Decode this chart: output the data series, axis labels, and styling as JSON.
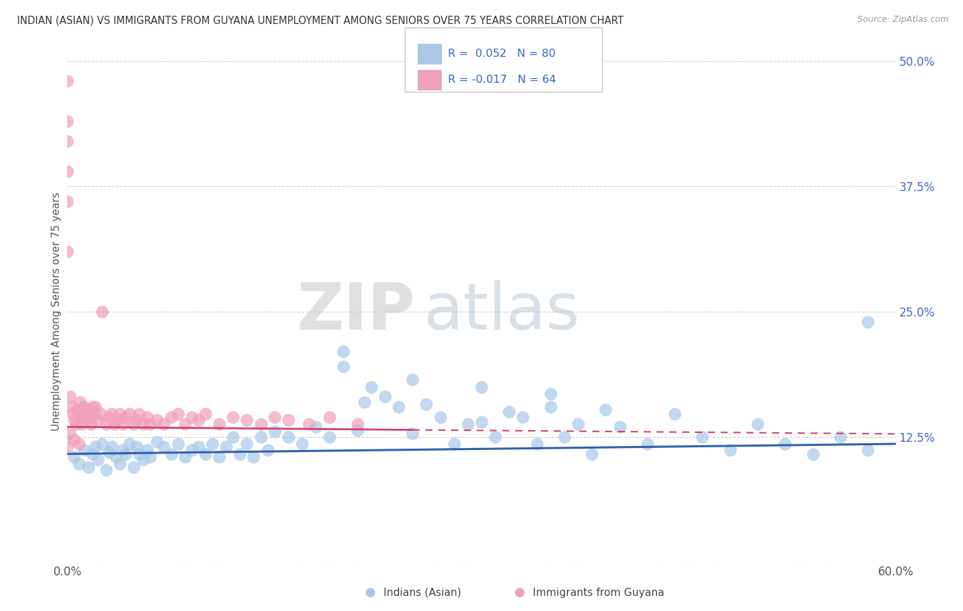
{
  "title": "INDIAN (ASIAN) VS IMMIGRANTS FROM GUYANA UNEMPLOYMENT AMONG SENIORS OVER 75 YEARS CORRELATION CHART",
  "source": "Source: ZipAtlas.com",
  "ylabel": "Unemployment Among Seniors over 75 years",
  "xlim": [
    0.0,
    0.6
  ],
  "ylim": [
    0.0,
    0.5
  ],
  "xticks": [
    0.0,
    0.1,
    0.2,
    0.3,
    0.4,
    0.5,
    0.6
  ],
  "xticklabels": [
    "0.0%",
    "",
    "",
    "",
    "",
    "",
    "60.0%"
  ],
  "yticks": [
    0.0,
    0.125,
    0.25,
    0.375,
    0.5
  ],
  "yticklabels": [
    "",
    "12.5%",
    "25.0%",
    "37.5%",
    "50.0%"
  ],
  "legend_r1": "0.052",
  "legend_n1": "80",
  "legend_r2": "-0.017",
  "legend_n2": "64",
  "color_blue": "#A8C8E8",
  "color_pink": "#F0A0B8",
  "line_blue": "#3060B0",
  "line_pink": "#D04070",
  "watermark_zip": "ZIP",
  "watermark_atlas": "atlas",
  "blue_scatter_x": [
    0.005,
    0.008,
    0.012,
    0.015,
    0.018,
    0.02,
    0.022,
    0.025,
    0.028,
    0.03,
    0.032,
    0.035,
    0.038,
    0.04,
    0.042,
    0.045,
    0.048,
    0.05,
    0.052,
    0.055,
    0.058,
    0.06,
    0.065,
    0.07,
    0.075,
    0.08,
    0.085,
    0.09,
    0.095,
    0.1,
    0.105,
    0.11,
    0.115,
    0.12,
    0.125,
    0.13,
    0.135,
    0.14,
    0.145,
    0.15,
    0.16,
    0.17,
    0.18,
    0.19,
    0.2,
    0.21,
    0.215,
    0.22,
    0.23,
    0.24,
    0.25,
    0.26,
    0.27,
    0.28,
    0.29,
    0.3,
    0.31,
    0.32,
    0.33,
    0.34,
    0.35,
    0.36,
    0.37,
    0.38,
    0.39,
    0.4,
    0.42,
    0.44,
    0.46,
    0.48,
    0.5,
    0.52,
    0.54,
    0.56,
    0.58,
    0.2,
    0.25,
    0.3,
    0.58,
    0.35
  ],
  "blue_scatter_y": [
    0.105,
    0.098,
    0.112,
    0.095,
    0.108,
    0.115,
    0.102,
    0.118,
    0.092,
    0.11,
    0.115,
    0.105,
    0.098,
    0.112,
    0.108,
    0.118,
    0.095,
    0.115,
    0.108,
    0.102,
    0.112,
    0.105,
    0.12,
    0.115,
    0.108,
    0.118,
    0.105,
    0.112,
    0.115,
    0.108,
    0.118,
    0.105,
    0.115,
    0.125,
    0.108,
    0.118,
    0.105,
    0.125,
    0.112,
    0.13,
    0.125,
    0.118,
    0.135,
    0.125,
    0.21,
    0.132,
    0.16,
    0.175,
    0.165,
    0.155,
    0.128,
    0.158,
    0.145,
    0.118,
    0.138,
    0.14,
    0.125,
    0.15,
    0.145,
    0.118,
    0.155,
    0.125,
    0.138,
    0.108,
    0.152,
    0.135,
    0.118,
    0.148,
    0.125,
    0.112,
    0.138,
    0.118,
    0.108,
    0.125,
    0.112,
    0.195,
    0.182,
    0.175,
    0.24,
    0.168
  ],
  "pink_scatter_x": [
    0.0,
    0.0,
    0.0,
    0.0,
    0.0,
    0.0,
    0.002,
    0.003,
    0.004,
    0.005,
    0.006,
    0.007,
    0.008,
    0.009,
    0.01,
    0.01,
    0.012,
    0.013,
    0.014,
    0.015,
    0.016,
    0.017,
    0.018,
    0.019,
    0.02,
    0.022,
    0.024,
    0.025,
    0.028,
    0.03,
    0.032,
    0.034,
    0.036,
    0.038,
    0.04,
    0.042,
    0.045,
    0.048,
    0.05,
    0.052,
    0.055,
    0.058,
    0.06,
    0.065,
    0.07,
    0.075,
    0.08,
    0.085,
    0.09,
    0.095,
    0.1,
    0.11,
    0.12,
    0.13,
    0.14,
    0.15,
    0.16,
    0.175,
    0.19,
    0.21,
    0.0,
    0.002,
    0.005,
    0.008
  ],
  "pink_scatter_y": [
    0.48,
    0.44,
    0.42,
    0.39,
    0.36,
    0.31,
    0.165,
    0.155,
    0.148,
    0.142,
    0.138,
    0.152,
    0.145,
    0.16,
    0.148,
    0.138,
    0.155,
    0.148,
    0.142,
    0.152,
    0.145,
    0.138,
    0.155,
    0.148,
    0.155,
    0.142,
    0.148,
    0.25,
    0.138,
    0.145,
    0.148,
    0.138,
    0.142,
    0.148,
    0.138,
    0.145,
    0.148,
    0.138,
    0.142,
    0.148,
    0.138,
    0.145,
    0.138,
    0.142,
    0.138,
    0.145,
    0.148,
    0.138,
    0.145,
    0.142,
    0.148,
    0.138,
    0.145,
    0.142,
    0.138,
    0.145,
    0.142,
    0.138,
    0.145,
    0.138,
    0.115,
    0.128,
    0.122,
    0.118
  ]
}
